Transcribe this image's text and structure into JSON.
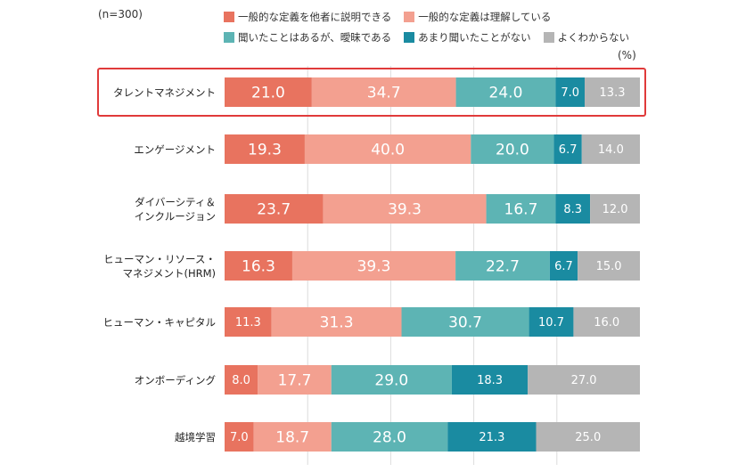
{
  "sample_label": "(n=300)",
  "unit_label": "(%)",
  "colors": {
    "explain": "#e8735f",
    "understand": "#f3a090",
    "heard": "#5db4b4",
    "rarely": "#1a8ba1",
    "unknown": "#b5b5b5",
    "highlight_border": "#e03a3a"
  },
  "chart_data": {
    "type": "bar",
    "orientation": "horizontal",
    "stacked": true,
    "xlim": [
      0,
      100
    ],
    "unit": "%",
    "grid": true,
    "legend_position": "top",
    "sample_size": "(n=300)",
    "highlighted_category": "タレントマネジメント",
    "categories": [
      [
        "タレントマネジメント"
      ],
      [
        "エンゲージメント"
      ],
      [
        "ダイバーシティ＆",
        "インクルージョン"
      ],
      [
        "ヒューマン・リソース・",
        "マネジメント(HRM)"
      ],
      [
        "ヒューマン・キャピタル"
      ],
      [
        "オンボーディング"
      ],
      [
        "越境学習"
      ]
    ],
    "series": [
      {
        "name": "一般的な定義を他者に説明できる",
        "color_key": "explain",
        "values": [
          "21.0",
          "19.3",
          "23.7",
          "16.3",
          "11.3",
          "8.0",
          "7.0"
        ]
      },
      {
        "name": "一般的な定義は理解している",
        "color_key": "understand",
        "values": [
          "34.7",
          "40.0",
          "39.3",
          "39.3",
          "31.3",
          "17.7",
          "18.7"
        ]
      },
      {
        "name": "聞いたことはあるが、曖昧である",
        "color_key": "heard",
        "values": [
          "24.0",
          "20.0",
          "16.7",
          "22.7",
          "30.7",
          "29.0",
          "28.0"
        ]
      },
      {
        "name": "あまり聞いたことがない",
        "color_key": "rarely",
        "values": [
          "7.0",
          "6.7",
          "8.3",
          "6.7",
          "10.7",
          "18.3",
          "21.3"
        ]
      },
      {
        "name": "よくわからない",
        "color_key": "unknown",
        "values": [
          "13.3",
          "14.0",
          "12.0",
          "15.0",
          "16.0",
          "27.0",
          "25.0"
        ]
      }
    ]
  }
}
